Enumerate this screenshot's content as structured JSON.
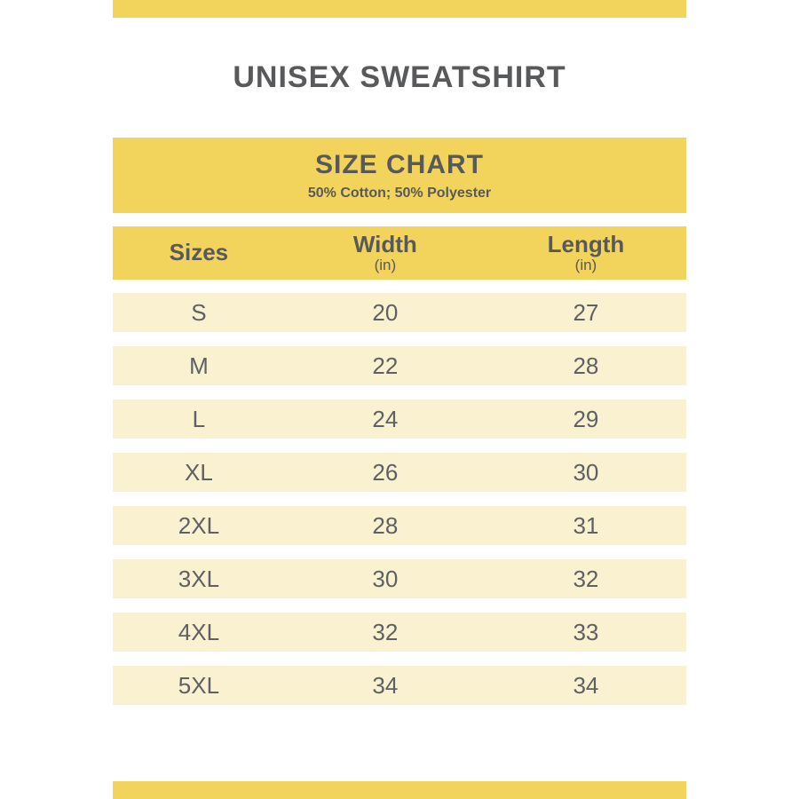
{
  "page": {
    "title": "UNISEX SWEATSHIRT"
  },
  "size_chart": {
    "heading": "SIZE CHART",
    "subheading": "50% Cotton; 50% Polyester",
    "columns": [
      {
        "label": "Sizes",
        "unit": ""
      },
      {
        "label": "Width",
        "unit": "(in)"
      },
      {
        "label": "Length",
        "unit": "(in)"
      }
    ],
    "rows": [
      {
        "size": "S",
        "width": "20",
        "length": "27"
      },
      {
        "size": "M",
        "width": "22",
        "length": "28"
      },
      {
        "size": "L",
        "width": "24",
        "length": "29"
      },
      {
        "size": "XL",
        "width": "26",
        "length": "30"
      },
      {
        "size": "2XL",
        "width": "28",
        "length": "31"
      },
      {
        "size": "3XL",
        "width": "30",
        "length": "32"
      },
      {
        "size": "4XL",
        "width": "32",
        "length": "33"
      },
      {
        "size": "5XL",
        "width": "34",
        "length": "34"
      }
    ]
  },
  "colors": {
    "accent": "#F2D45C",
    "row_bg": "#FAF1D1",
    "heading_text": "#58595B",
    "body_text": "#5F6062"
  }
}
